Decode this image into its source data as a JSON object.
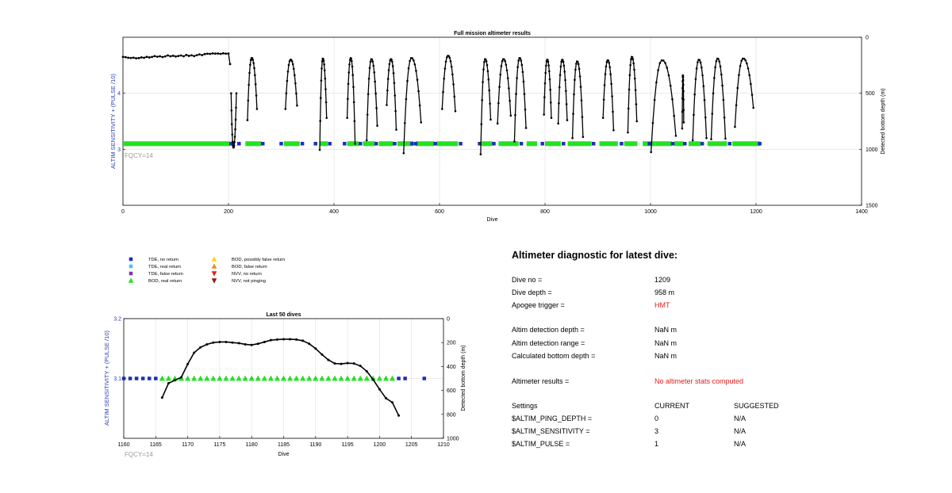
{
  "colors": {
    "axis": "#000000",
    "grid": "#e6e6e6",
    "left_axis_blue": "#2a3bb8",
    "fqcy_gray": "#9a9a9a",
    "tde_no_return": "#1f2fb4",
    "tde_real_return": "#37c8e8",
    "tde_false_return": "#7b35b5",
    "bod_real_return": "#22e222",
    "bod_possibly_false": "#ffd21a",
    "bod_false": "#f08a1a",
    "nvv_no_return": "#e0201b",
    "nvv_not_pinging": "#8b1a10",
    "depth_line": "#000000",
    "red_text": "#e0201b"
  },
  "chart_data": [
    {
      "id": "full",
      "type": "line",
      "title": "Full mission altimeter results",
      "xlabel": "Dive",
      "ylabel_left": "ALTIM SENSITIVITY + (PULSE /10)",
      "ylabel_right": "Detected bottom depth (m)",
      "xlim": [
        0,
        1400
      ],
      "xticks": [
        0,
        200,
        400,
        600,
        800,
        1000,
        1200,
        1400
      ],
      "ylim_left": [
        2,
        5
      ],
      "yticks_left": [
        3,
        4
      ],
      "ylim_right": [
        0,
        1500
      ],
      "yticks_right": [
        0,
        500,
        1000,
        1500
      ],
      "right_axis_reversed": true,
      "annotation": "FQCY=14",
      "sensitivity_marker_y": 3.1,
      "sensitivity_segments": [
        [
          0,
          203,
          "bod_real_return"
        ],
        [
          205,
          212,
          "tde_no_return"
        ],
        [
          232,
          262,
          "bod_real_return"
        ],
        [
          305,
          335,
          "bod_real_return"
        ],
        [
          372,
          388,
          "bod_real_return"
        ],
        [
          425,
          447,
          "bod_real_return"
        ],
        [
          455,
          478,
          "bod_real_return"
        ],
        [
          485,
          512,
          "bod_real_return"
        ],
        [
          520,
          550,
          "bod_real_return"
        ],
        [
          555,
          590,
          "bod_real_return"
        ],
        [
          595,
          635,
          "bod_real_return"
        ],
        [
          680,
          700,
          "bod_real_return"
        ],
        [
          712,
          750,
          "bod_real_return"
        ],
        [
          765,
          785,
          "bod_real_return"
        ],
        [
          800,
          830,
          "bod_real_return"
        ],
        [
          843,
          888,
          "bod_real_return"
        ],
        [
          903,
          938,
          "bod_real_return"
        ],
        [
          950,
          975,
          "bod_real_return"
        ],
        [
          985,
          1010,
          "bod_real_return"
        ],
        [
          1010,
          1040,
          "bod_real_return"
        ],
        [
          1045,
          1062,
          "bod_real_return"
        ],
        [
          1072,
          1095,
          "bod_real_return"
        ],
        [
          1108,
          1145,
          "bod_real_return"
        ],
        [
          1155,
          1207,
          "bod_real_return"
        ]
      ],
      "sensitivity_no_return_points": [
        205,
        220,
        265,
        300,
        340,
        365,
        392,
        420,
        450,
        480,
        515,
        548,
        555,
        592,
        640,
        676,
        703,
        755,
        795,
        835,
        892,
        945,
        998,
        1042,
        1065,
        1098,
        1150,
        1207
      ],
      "depth_early_series": [
        [
          0,
          175
        ],
        [
          5,
          178
        ],
        [
          10,
          183
        ],
        [
          15,
          185
        ],
        [
          20,
          182
        ],
        [
          25,
          188
        ],
        [
          30,
          186
        ],
        [
          35,
          180
        ],
        [
          40,
          183
        ],
        [
          45,
          175
        ],
        [
          50,
          180
        ],
        [
          55,
          176
        ],
        [
          60,
          168
        ],
        [
          65,
          174
        ],
        [
          70,
          170
        ],
        [
          75,
          177
        ],
        [
          80,
          171
        ],
        [
          85,
          162
        ],
        [
          90,
          170
        ],
        [
          95,
          165
        ],
        [
          100,
          172
        ],
        [
          105,
          167
        ],
        [
          110,
          163
        ],
        [
          115,
          170
        ],
        [
          120,
          158
        ],
        [
          125,
          166
        ],
        [
          130,
          161
        ],
        [
          135,
          168
        ],
        [
          140,
          160
        ],
        [
          145,
          153
        ],
        [
          150,
          159
        ],
        [
          155,
          150
        ],
        [
          160,
          147
        ],
        [
          165,
          149
        ],
        [
          170,
          144
        ],
        [
          175,
          146
        ],
        [
          180,
          145
        ],
        [
          185,
          149
        ],
        [
          190,
          143
        ],
        [
          195,
          147
        ],
        [
          200,
          145
        ],
        [
          203,
          240
        ]
      ],
      "depth_arcs": [
        [
          205,
          215,
          500,
          985,
          500
        ],
        [
          236,
          254,
          740,
          185,
          640
        ],
        [
          308,
          330,
          640,
          200,
          610
        ],
        [
          373,
          386,
          1005,
          190,
          720
        ],
        [
          425,
          440,
          720,
          185,
          950
        ],
        [
          462,
          482,
          920,
          195,
          790
        ],
        [
          500,
          518,
          605,
          195,
          825
        ],
        [
          532,
          565,
          1035,
          185,
          760
        ],
        [
          605,
          630,
          640,
          165,
          660
        ],
        [
          678,
          697,
          1045,
          195,
          735
        ],
        [
          710,
          735,
          770,
          195,
          700
        ],
        [
          742,
          764,
          930,
          185,
          810
        ],
        [
          798,
          812,
          690,
          200,
          720
        ],
        [
          825,
          842,
          770,
          200,
          740
        ],
        [
          852,
          872,
          900,
          215,
          890
        ],
        [
          910,
          930,
          720,
          205,
          830
        ],
        [
          957,
          974,
          850,
          175,
          750
        ],
        [
          1001,
          1048,
          1025,
          205,
          880
        ],
        [
          1060,
          1063,
          815,
          340,
          760
        ],
        [
          1080,
          1106,
          920,
          200,
          900
        ],
        [
          1115,
          1142,
          910,
          190,
          905
        ],
        [
          1160,
          1195,
          800,
          190,
          630
        ]
      ]
    },
    {
      "id": "last50",
      "type": "line",
      "title": "Last 50 dives",
      "xlabel": "Dive",
      "ylabel_left": "ALTIM SENSITIVITY + (PULSE /10)",
      "ylabel_right": "Detected bottom depth (m)",
      "xlim": [
        1160,
        1210
      ],
      "xticks": [
        1160,
        1165,
        1170,
        1175,
        1180,
        1185,
        1190,
        1195,
        1200,
        1205,
        1210
      ],
      "ylim_left": [
        3.0,
        3.2
      ],
      "yticks_left": [
        3.1,
        3.2
      ],
      "ylim_right": [
        0,
        1000
      ],
      "yticks_right": [
        0,
        200,
        400,
        600,
        800,
        1000
      ],
      "right_axis_reversed": true,
      "annotation": "FQCY=14",
      "tde_no_return_x": [
        1160,
        1161,
        1162,
        1163,
        1164,
        1165,
        1203,
        1204,
        1207
      ],
      "bod_real_return_x": [
        1166,
        1167,
        1168,
        1169,
        1170,
        1171,
        1172,
        1173,
        1174,
        1175,
        1176,
        1177,
        1178,
        1179,
        1180,
        1181,
        1182,
        1183,
        1184,
        1185,
        1186,
        1187,
        1188,
        1189,
        1190,
        1191,
        1192,
        1193,
        1194,
        1195,
        1196,
        1197,
        1198,
        1199,
        1200,
        1201,
        1202
      ],
      "sensitivity_y": 3.1,
      "depth": [
        [
          1166,
          660
        ],
        [
          1167,
          540
        ],
        [
          1168,
          515
        ],
        [
          1169,
          490
        ],
        [
          1170,
          380
        ],
        [
          1171,
          285
        ],
        [
          1172,
          240
        ],
        [
          1173,
          215
        ],
        [
          1174,
          200
        ],
        [
          1175,
          195
        ],
        [
          1176,
          195
        ],
        [
          1177,
          200
        ],
        [
          1178,
          205
        ],
        [
          1179,
          215
        ],
        [
          1180,
          220
        ],
        [
          1181,
          210
        ],
        [
          1182,
          195
        ],
        [
          1183,
          180
        ],
        [
          1184,
          175
        ],
        [
          1185,
          172
        ],
        [
          1186,
          172
        ],
        [
          1187,
          175
        ],
        [
          1188,
          185
        ],
        [
          1189,
          210
        ],
        [
          1190,
          250
        ],
        [
          1191,
          300
        ],
        [
          1192,
          345
        ],
        [
          1193,
          375
        ],
        [
          1194,
          378
        ],
        [
          1195,
          372
        ],
        [
          1196,
          375
        ],
        [
          1197,
          395
        ],
        [
          1198,
          440
        ],
        [
          1199,
          510
        ],
        [
          1200,
          590
        ],
        [
          1201,
          665
        ],
        [
          1202,
          700
        ],
        [
          1203,
          810
        ]
      ]
    }
  ],
  "legend": {
    "items": [
      {
        "label": "TDE, no return",
        "marker": "square",
        "color_key": "tde_no_return"
      },
      {
        "label": "TDE, real return",
        "marker": "square",
        "color_key": "tde_real_return"
      },
      {
        "label": "TDE, false return",
        "marker": "square",
        "color_key": "tde_false_return"
      },
      {
        "label": "BOD, real return",
        "marker": "triangle-up",
        "color_key": "bod_real_return"
      },
      {
        "label": "BOD, possibly false return",
        "marker": "triangle-up",
        "color_key": "bod_possibly_false"
      },
      {
        "label": "BOD, false return",
        "marker": "triangle-up",
        "color_key": "bod_false"
      },
      {
        "label": "NVV, no return",
        "marker": "triangle-down",
        "color_key": "nvv_no_return"
      },
      {
        "label": "NVV, not pinging",
        "marker": "triangle-down",
        "color_key": "nvv_not_pinging"
      }
    ]
  },
  "diagnostic": {
    "title": "Altimeter diagnostic for latest dive:",
    "dive_no_label": "Dive no =",
    "dive_no_value": "1209",
    "dive_depth_label": "Dive depth =",
    "dive_depth_value": "958 m",
    "apogee_label": "Apogee trigger =",
    "apogee_value": "HMT",
    "altim_det_depth_label": "Altim detection depth =",
    "altim_det_depth_value": "NaN m",
    "altim_det_range_label": "Altim detection range =",
    "altim_det_range_value": "NaN m",
    "calc_bottom_label": "Calculated bottom depth =",
    "calc_bottom_value": "NaN m",
    "results_label": "Altimeter results =",
    "results_value": "No altimeter stats computed",
    "settings_header": "Settings",
    "current_header": "CURRENT",
    "suggested_header": "SUGGESTED",
    "settings": [
      {
        "name": "$ALTIM_PING_DEPTH =",
        "current": "0",
        "suggested": "N/A"
      },
      {
        "name": "$ALTIM_SENSITIVITY =",
        "current": "3",
        "suggested": "N/A"
      },
      {
        "name": "$ALTIM_PULSE =",
        "current": "1",
        "suggested": "N/A"
      }
    ]
  }
}
